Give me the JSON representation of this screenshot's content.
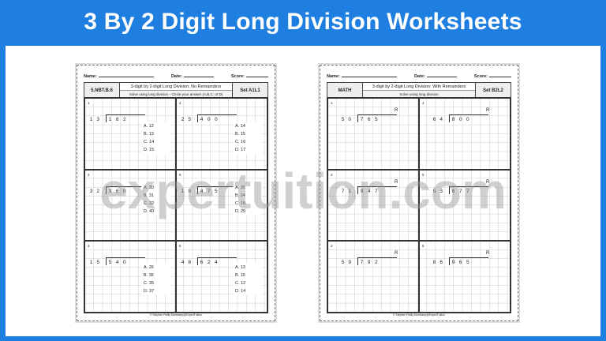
{
  "banner": {
    "title": "3 By 2 Digit Long Division Worksheets"
  },
  "watermark": "expertuition.com",
  "colors": {
    "brand": "#1f7fe0"
  },
  "sheets": [
    {
      "name_label": "Name:",
      "date_label": "Date:",
      "score_label": "Score:",
      "standard": "5.NBT.B.6",
      "title": "3-digit by 2-digit Long Division: No Remainders",
      "instructions": "Solve using long division – Circle your answer (A,B,C, or D)",
      "set": "Set A1L1",
      "footer": "© Stephen Reilly Morrissey@ExpertTuition",
      "problems": [
        {
          "n": "1",
          "divisor": "13",
          "dividend": "182",
          "choices": [
            "A. 12",
            "B. 13",
            "C. 14",
            "D. 15"
          ]
        },
        {
          "n": "4",
          "divisor": "25",
          "dividend": "400",
          "choices": [
            "A. 14",
            "B. 15",
            "C. 16",
            "D. 17"
          ]
        },
        {
          "n": "2",
          "divisor": "32",
          "dividend": "960",
          "choices": [
            "A. 30",
            "B. 31",
            "C. 32",
            "D. 40"
          ]
        },
        {
          "n": "5",
          "divisor": "19",
          "dividend": "475",
          "choices": [
            "A. 35",
            "B. 24",
            "C. 15",
            "D. 25"
          ]
        },
        {
          "n": "3",
          "divisor": "15",
          "dividend": "540",
          "choices": [
            "A. 26",
            "B. 36",
            "C. 35",
            "D. 37"
          ]
        },
        {
          "n": "6",
          "divisor": "48",
          "dividend": "624",
          "choices": [
            "A. 13",
            "B. 15",
            "C. 12",
            "D. 14"
          ]
        }
      ]
    },
    {
      "name_label": "Name:",
      "date_label": "Date:",
      "score_label": "Score:",
      "standard": "MATH",
      "title": "3-digit by 2-digit Long Division: With Remainders",
      "instructions": "Solve using long division",
      "set": "Set B2L2",
      "footer": "© Stephen Reilly Morrissey@ExpertTuition",
      "remainder_label": "R",
      "problems": [
        {
          "n": "1",
          "divisor": "50",
          "dividend": "765"
        },
        {
          "n": "4",
          "divisor": "64",
          "dividend": "800"
        },
        {
          "n": "2",
          "divisor": "71",
          "dividend": "947"
        },
        {
          "n": "5",
          "divisor": "53",
          "dividend": "677"
        },
        {
          "n": "3",
          "divisor": "59",
          "dividend": "792"
        },
        {
          "n": "6",
          "divisor": "86",
          "dividend": "965"
        }
      ]
    }
  ]
}
